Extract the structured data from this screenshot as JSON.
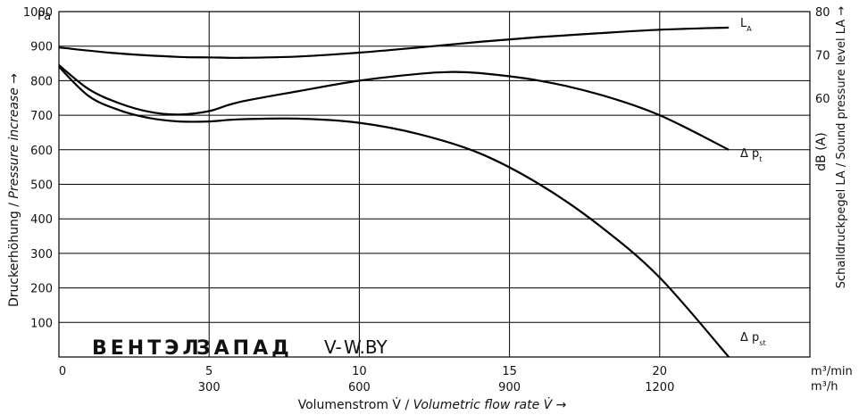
{
  "chart_data": {
    "type": "line",
    "y_left": {
      "unit": "Pa",
      "label_de": "Druckerhöhung /",
      "label_en": "Pressure increase →",
      "ylim": [
        0,
        1000
      ],
      "ticks": [
        100,
        200,
        300,
        400,
        500,
        600,
        700,
        800,
        900,
        1000
      ]
    },
    "y_right": {
      "unit": "dB (A)",
      "label": "Schalldruckpegel LA / Sound pressure level LA →",
      "ylim": [
        0,
        80
      ],
      "ticks": [
        60,
        70,
        80
      ]
    },
    "x": {
      "label_de": "Volumenstrom V̇ /",
      "label_en": "Volumetric flow rate V̇ →",
      "unit_primary": "m³/min",
      "unit_secondary": "m³/h",
      "xlim": [
        0,
        25
      ],
      "ticks_primary": [
        0,
        5,
        10,
        15,
        20
      ],
      "ticks_secondary": [
        300,
        600,
        900,
        1200
      ],
      "ticks_secondary_at": [
        5,
        10,
        15,
        20
      ]
    },
    "series": [
      {
        "name": "LA",
        "name_main": "L",
        "name_sub": "A",
        "axis": "right",
        "x": [
          0,
          2,
          4,
          5,
          6,
          8,
          10,
          12,
          14,
          16,
          18,
          20,
          22.3
        ],
        "y": [
          71.7,
          70.3,
          69.5,
          69.4,
          69.3,
          69.6,
          70.5,
          71.7,
          73.0,
          74.1,
          75.0,
          75.8,
          76.3
        ]
      },
      {
        "name": "Δ pt",
        "name_main": "Δ p",
        "name_sub": "t",
        "axis": "left",
        "x": [
          0,
          1,
          2,
          3,
          4,
          5,
          6,
          8,
          10,
          12,
          13,
          14,
          16,
          18,
          20,
          22.3
        ],
        "y": [
          845,
          775,
          735,
          710,
          702,
          712,
          738,
          770,
          800,
          820,
          825,
          822,
          800,
          760,
          700,
          600
        ]
      },
      {
        "name": "Δ pst",
        "name_main": "Δ p",
        "name_sub": "st",
        "axis": "left",
        "x": [
          0,
          1,
          2,
          3,
          4,
          5,
          6,
          8,
          10,
          12,
          14,
          16,
          18,
          20,
          22.3
        ],
        "y": [
          840,
          755,
          715,
          692,
          682,
          682,
          688,
          690,
          678,
          645,
          590,
          500,
          380,
          230,
          0
        ]
      }
    ]
  },
  "watermark": {
    "part1": "ВЕНТЭЛ",
    "part2": "ЗАПАД",
    "part3": "V-",
    "part4": "W.BY"
  }
}
